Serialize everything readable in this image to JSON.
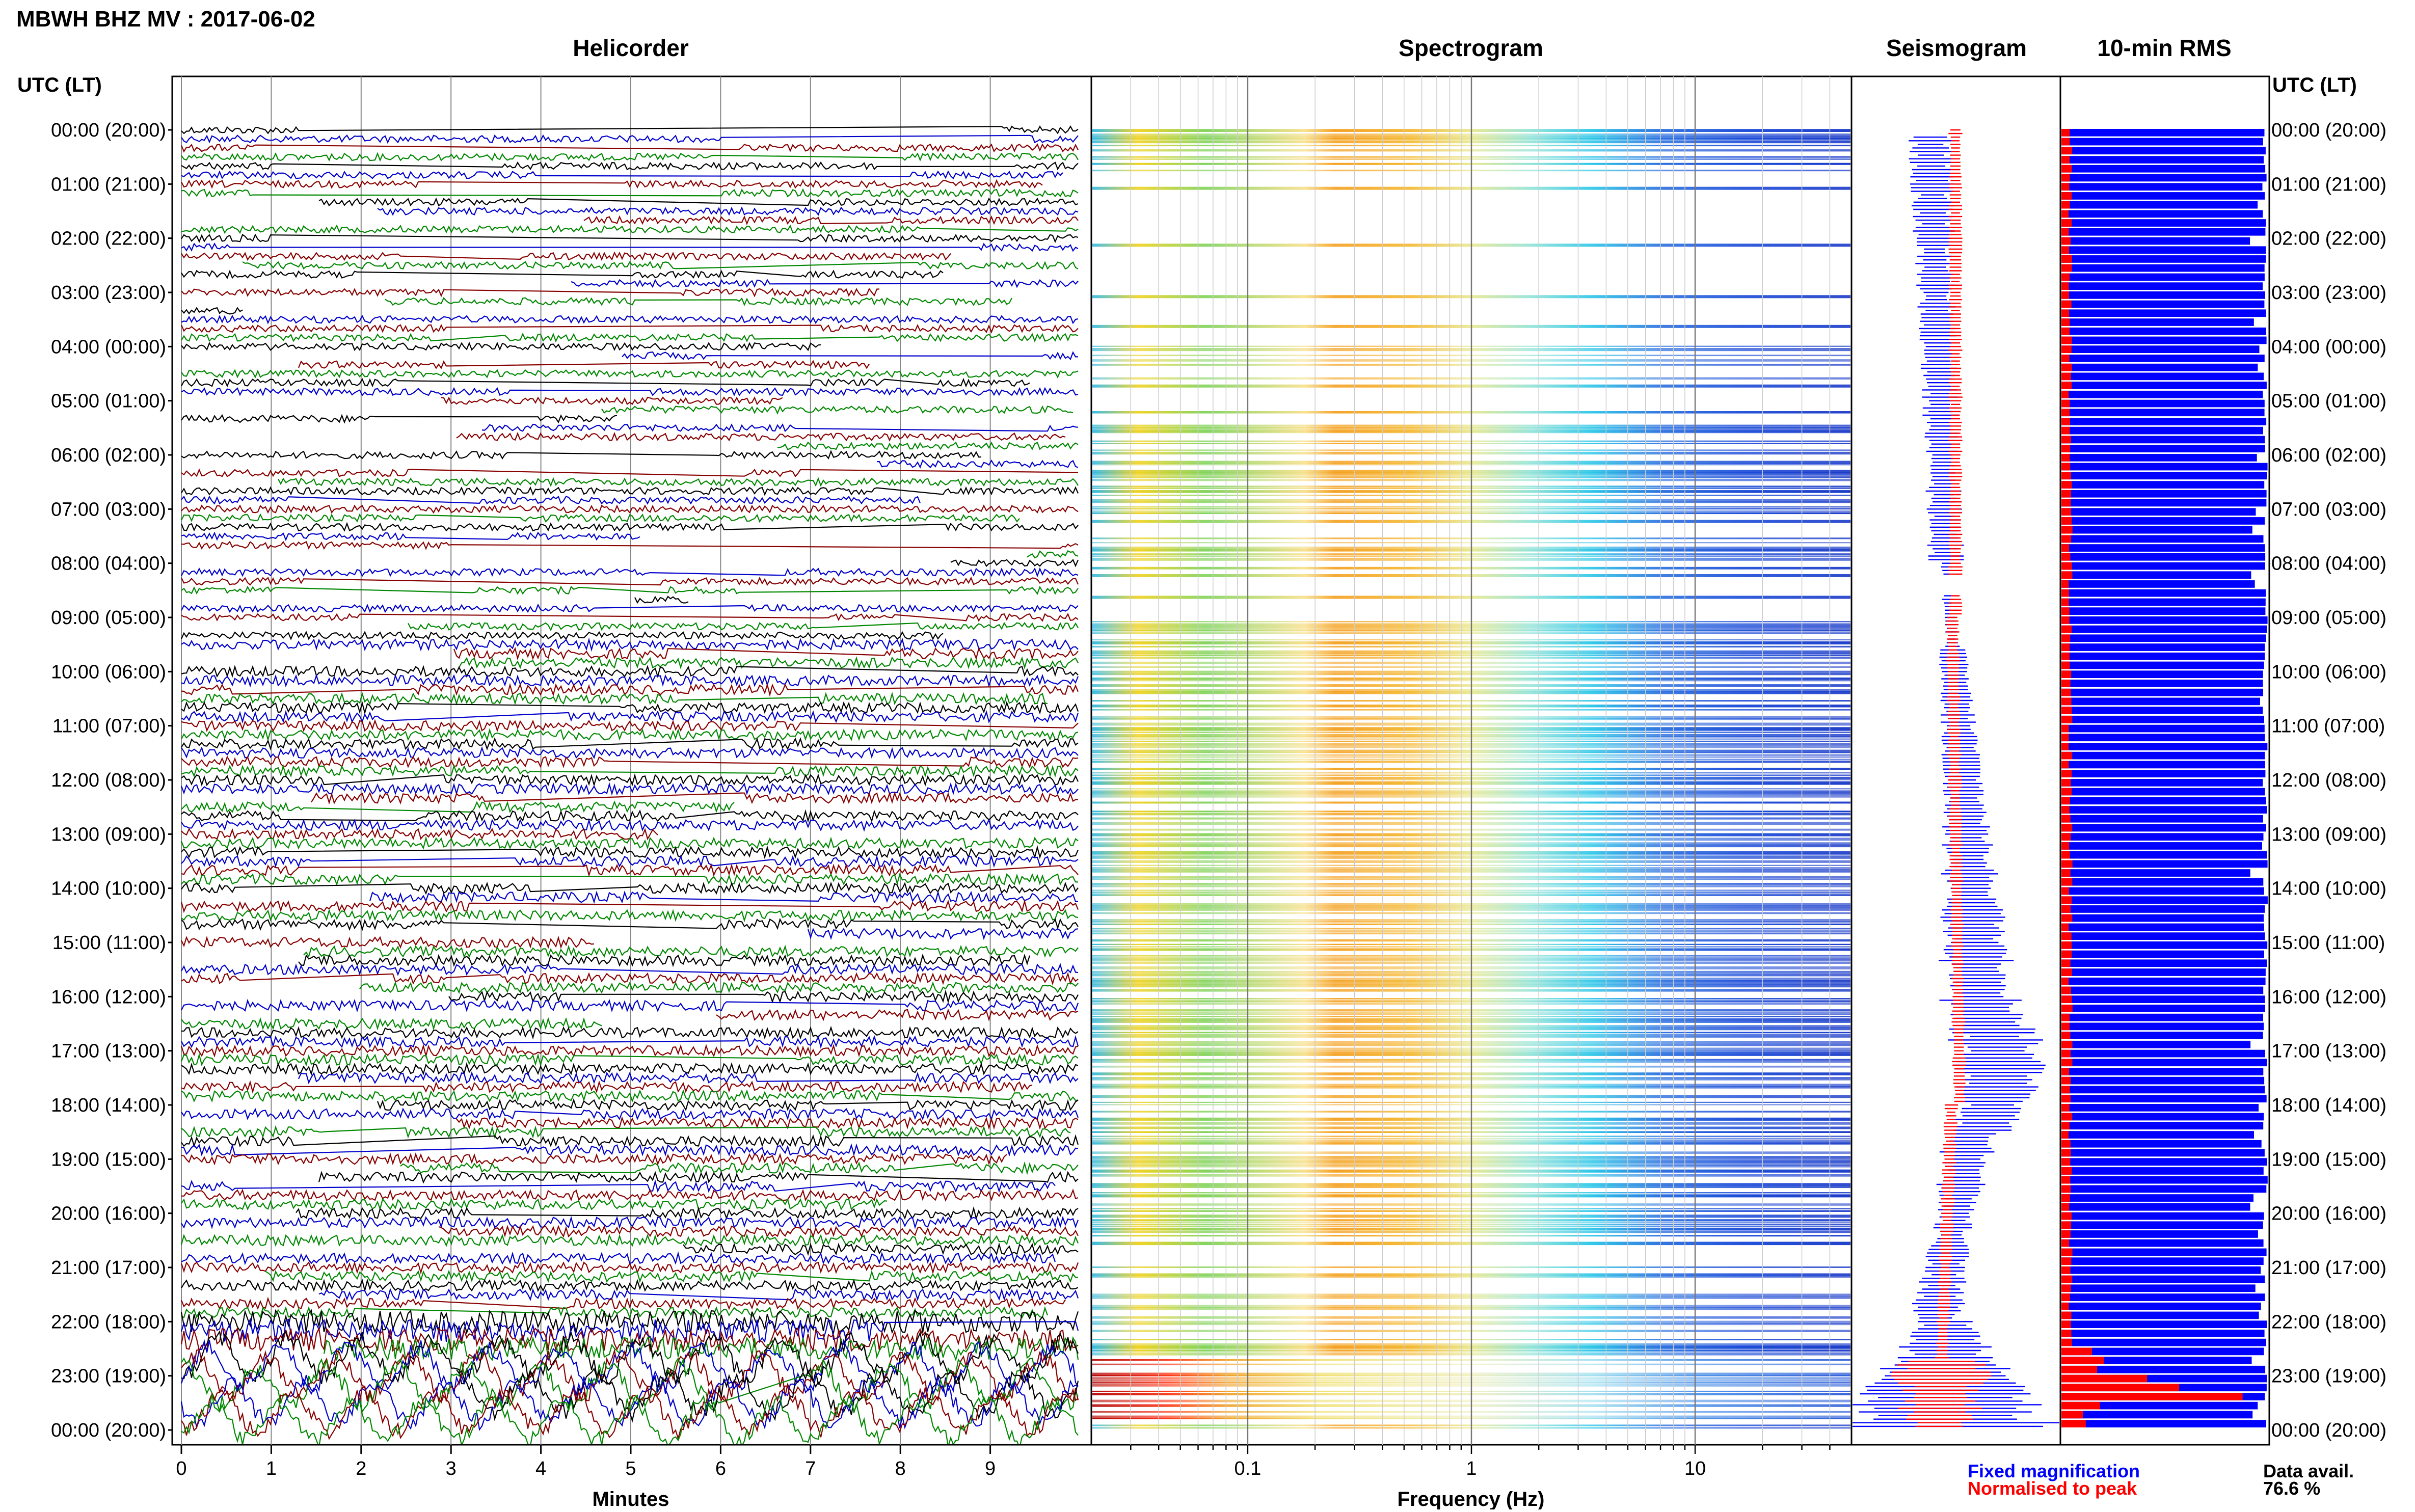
{
  "chart_data": {
    "type": "heatmap",
    "title": "MBWH BHZ MV : 2017-06-02",
    "panels": {
      "helicorder": "Helicorder",
      "spectrogram": "Spectrogram",
      "seismogram": "Seismogram",
      "rms": "10-min RMS"
    },
    "time_axis_label": "UTC (LT)",
    "time_labels": [
      "00:00 (20:00)",
      "01:00 (21:00)",
      "02:00 (22:00)",
      "03:00 (23:00)",
      "04:00 (00:00)",
      "05:00 (01:00)",
      "06:00 (02:00)",
      "07:00 (03:00)",
      "08:00 (04:00)",
      "09:00 (05:00)",
      "10:00 (06:00)",
      "11:00 (07:00)",
      "12:00 (08:00)",
      "13:00 (09:00)",
      "14:00 (10:00)",
      "15:00 (11:00)",
      "16:00 (12:00)",
      "17:00 (13:00)",
      "18:00 (14:00)",
      "19:00 (15:00)",
      "20:00 (16:00)",
      "21:00 (17:00)",
      "22:00 (18:00)",
      "23:00 (19:00)",
      "00:00 (20:00)"
    ],
    "helicorder_xlabel": "Minutes",
    "helicorder_ticks": [
      "0",
      "1",
      "2",
      "3",
      "4",
      "5",
      "6",
      "7",
      "8",
      "9"
    ],
    "helicorder_xlim": [
      0,
      10
    ],
    "trace_colors": [
      "#000000",
      "#0000cc",
      "#880000",
      "#008800"
    ],
    "spectrogram_xlabel": "Frequency (Hz)",
    "spectrogram_ticks": [
      "0.1",
      "1",
      "10"
    ],
    "spectrogram_xlim": [
      0.02,
      50
    ],
    "spectrogram_scale": "log",
    "legend": {
      "fixed": "Fixed magnification",
      "fixed_color": "#0000ff",
      "normalised": "Normalised to peak",
      "normalised_color": "#ff0000"
    },
    "data_avail_label": "Data avail.",
    "data_avail_value": "76.6 %"
  }
}
